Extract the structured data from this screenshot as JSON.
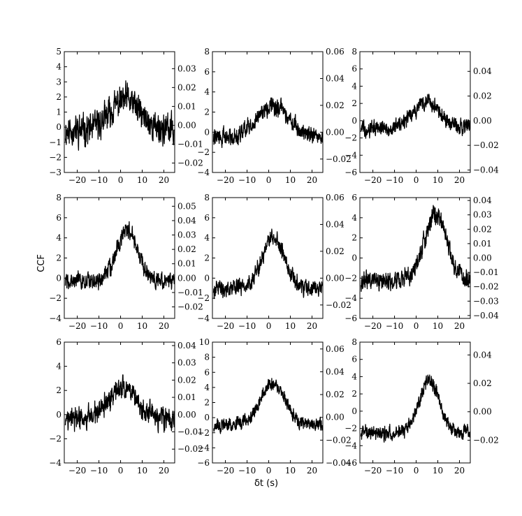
{
  "figure": {
    "ylabel": "CCF",
    "xlabel": "δt (s)"
  },
  "chart_data": [
    {
      "type": "line",
      "row": 0,
      "col": 0,
      "xlim": [
        -26,
        25
      ],
      "xticks": [
        -20,
        -10,
        0,
        10,
        20
      ],
      "ylim_left": [
        -3,
        5
      ],
      "yticks_left": [
        -3,
        -2,
        -1,
        0,
        1,
        2,
        3,
        4,
        5
      ],
      "ylim_right": [
        -0.025,
        0.039
      ],
      "yticks_right": [
        -0.02,
        -0.01,
        0.0,
        0.01,
        0.02,
        0.03
      ],
      "series": [
        {
          "shape": "peak",
          "center": 2,
          "height": 2.0,
          "width": 14,
          "offset": -0.2,
          "noise": 1.2,
          "seed": 11
        }
      ]
    },
    {
      "type": "line",
      "row": 0,
      "col": 1,
      "xlim": [
        -26,
        25
      ],
      "xticks": [
        -20,
        -10,
        0,
        10,
        20
      ],
      "ylim_left": [
        -4,
        8
      ],
      "yticks_left": [
        -4,
        -2,
        0,
        2,
        4,
        6,
        8
      ],
      "ylim_right": [
        -0.03,
        0.06
      ],
      "yticks_right": [
        -0.02,
        0.0,
        0.02,
        0.04,
        0.06
      ],
      "series": [
        {
          "shape": "peak",
          "center": 2,
          "height": 3.0,
          "width": 16,
          "offset": -0.5,
          "noise": 1.0,
          "seed": 22
        }
      ]
    },
    {
      "type": "line",
      "row": 0,
      "col": 2,
      "xlim": [
        -26,
        25
      ],
      "xticks": [
        -20,
        -10,
        0,
        10,
        20
      ],
      "ylim_left": [
        -6,
        8
      ],
      "yticks_left": [
        -6,
        -4,
        -2,
        0,
        2,
        4,
        6,
        8
      ],
      "ylim_right": [
        -0.042,
        0.056
      ],
      "yticks_right": [
        -0.04,
        -0.02,
        0.0,
        0.02,
        0.04
      ],
      "series": [
        {
          "shape": "peak",
          "center": 5,
          "height": 3.0,
          "width": 12,
          "offset": -0.8,
          "noise": 1.1,
          "seed": 33
        }
      ]
    },
    {
      "type": "line",
      "row": 1,
      "col": 0,
      "xlim": [
        -26,
        25
      ],
      "xticks": [
        -20,
        -10,
        0,
        10,
        20
      ],
      "ylim_left": [
        -4,
        8
      ],
      "yticks_left": [
        -4,
        -2,
        0,
        2,
        4,
        6,
        8
      ],
      "ylim_right": [
        -0.028,
        0.056
      ],
      "yticks_right": [
        -0.02,
        -0.01,
        0.0,
        0.01,
        0.02,
        0.03,
        0.04,
        0.05
      ],
      "series": [
        {
          "shape": "peak",
          "center": 3,
          "height": 5.0,
          "width": 10,
          "offset": -0.3,
          "noise": 1.0,
          "seed": 44
        }
      ]
    },
    {
      "type": "line",
      "row": 1,
      "col": 1,
      "xlim": [
        -26,
        25
      ],
      "xticks": [
        -20,
        -10,
        0,
        10,
        20
      ],
      "ylim_left": [
        -4,
        8
      ],
      "yticks_left": [
        -4,
        -2,
        0,
        2,
        4,
        6,
        8
      ],
      "ylim_right": [
        -0.03,
        0.06
      ],
      "yticks_right": [
        -0.02,
        0.0,
        0.02,
        0.04,
        0.06
      ],
      "series": [
        {
          "shape": "peak",
          "center": 2,
          "height": 5.0,
          "width": 11,
          "offset": -1.0,
          "noise": 1.0,
          "seed": 55
        }
      ]
    },
    {
      "type": "line",
      "row": 1,
      "col": 2,
      "xlim": [
        -26,
        25
      ],
      "xticks": [
        -20,
        -10,
        0,
        10,
        20
      ],
      "ylim_left": [
        -6,
        6
      ],
      "yticks_left": [
        -6,
        -4,
        -2,
        0,
        2,
        4,
        6
      ],
      "ylim_right": [
        -0.042,
        0.042
      ],
      "yticks_right": [
        -0.04,
        -0.03,
        -0.02,
        -0.01,
        0.0,
        0.01,
        0.02,
        0.03,
        0.04
      ],
      "series": [
        {
          "shape": "peak",
          "center": 9,
          "height": 6.5,
          "width": 11,
          "offset": -2.2,
          "noise": 1.1,
          "seed": 66
        }
      ]
    },
    {
      "type": "line",
      "row": 2,
      "col": 0,
      "xlim": [
        -26,
        25
      ],
      "xticks": [
        -20,
        -10,
        0,
        10,
        20
      ],
      "ylim_left": [
        -4,
        6
      ],
      "yticks_left": [
        -4,
        -2,
        0,
        2,
        4,
        6
      ],
      "ylim_right": [
        -0.028,
        0.042
      ],
      "yticks_right": [
        -0.02,
        -0.01,
        0.0,
        0.01,
        0.02,
        0.03,
        0.04
      ],
      "series": [
        {
          "shape": "peak",
          "center": 1,
          "height": 2.5,
          "width": 14,
          "offset": -0.4,
          "noise": 1.1,
          "seed": 77
        }
      ]
    },
    {
      "type": "line",
      "row": 2,
      "col": 1,
      "xlim": [
        -26,
        25
      ],
      "xticks": [
        -20,
        -10,
        0,
        10,
        20
      ],
      "ylim_left": [
        -6,
        10
      ],
      "yticks_left": [
        -6,
        -4,
        -2,
        0,
        2,
        4,
        6,
        8,
        10
      ],
      "ylim_right": [
        -0.04,
        0.066
      ],
      "yticks_right": [
        -0.04,
        -0.02,
        0.0,
        0.02,
        0.04,
        0.06
      ],
      "series": [
        {
          "shape": "peak",
          "center": 2,
          "height": 5.5,
          "width": 12,
          "offset": -1.0,
          "noise": 1.0,
          "seed": 88
        }
      ]
    },
    {
      "type": "line",
      "row": 2,
      "col": 2,
      "xlim": [
        -26,
        25
      ],
      "xticks": [
        -20,
        -10,
        0,
        10,
        20
      ],
      "ylim_left": [
        -6,
        8
      ],
      "yticks_left": [
        -6,
        -4,
        -2,
        0,
        2,
        4,
        6,
        8
      ],
      "ylim_right": [
        -0.036,
        0.049
      ],
      "yticks_right": [
        -0.02,
        0.0,
        0.02,
        0.04
      ],
      "series": [
        {
          "shape": "peak",
          "center": 6,
          "height": 6.0,
          "width": 10,
          "offset": -2.5,
          "noise": 1.0,
          "seed": 99
        }
      ]
    }
  ]
}
